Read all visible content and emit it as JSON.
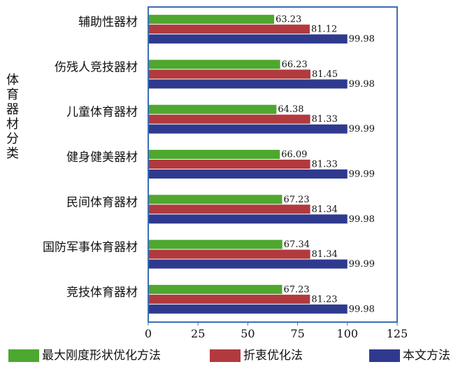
{
  "chart_data": {
    "type": "bar",
    "orientation": "horizontal",
    "categories": [
      "辅助性器材",
      "伤残人竞技器材",
      "儿童体育器材",
      "健身健美器材",
      "民间体育器材",
      "国防军事体育器材",
      "竞技体育器材"
    ],
    "series": [
      {
        "name": "最大刚度形状优化方法",
        "color": "#4ea72e",
        "values": [
          63.23,
          66.23,
          64.38,
          66.09,
          67.23,
          67.34,
          67.23
        ]
      },
      {
        "name": "折衷优化法",
        "color": "#b23a3f",
        "values": [
          81.12,
          81.45,
          81.33,
          81.33,
          81.34,
          81.34,
          81.23
        ]
      },
      {
        "name": "本文方法",
        "color": "#2f3a8f",
        "values": [
          99.98,
          99.98,
          99.99,
          99.99,
          99.98,
          99.99,
          99.98
        ]
      }
    ],
    "value_labels": [
      [
        "63.23",
        "66.23",
        "64.38",
        "66.09",
        "67.23",
        "67.34",
        "67.23"
      ],
      [
        "81.12",
        "81.45",
        "81.33",
        "81.33",
        "81.34",
        "81.34",
        "81.23"
      ],
      [
        "99.98",
        "99.98",
        "99.99",
        "99.99",
        "99.98",
        "99.99",
        "99.98"
      ]
    ],
    "xlim": [
      0,
      125
    ],
    "xticks": [
      0,
      25,
      50,
      75,
      100,
      125
    ],
    "xtick_labels": [
      "0",
      "25",
      "50",
      "75",
      "100",
      "125"
    ],
    "ylabel": "体育器材分类",
    "legend_position": "bottom",
    "grid": false,
    "frame_color": "#3b6fb6"
  }
}
